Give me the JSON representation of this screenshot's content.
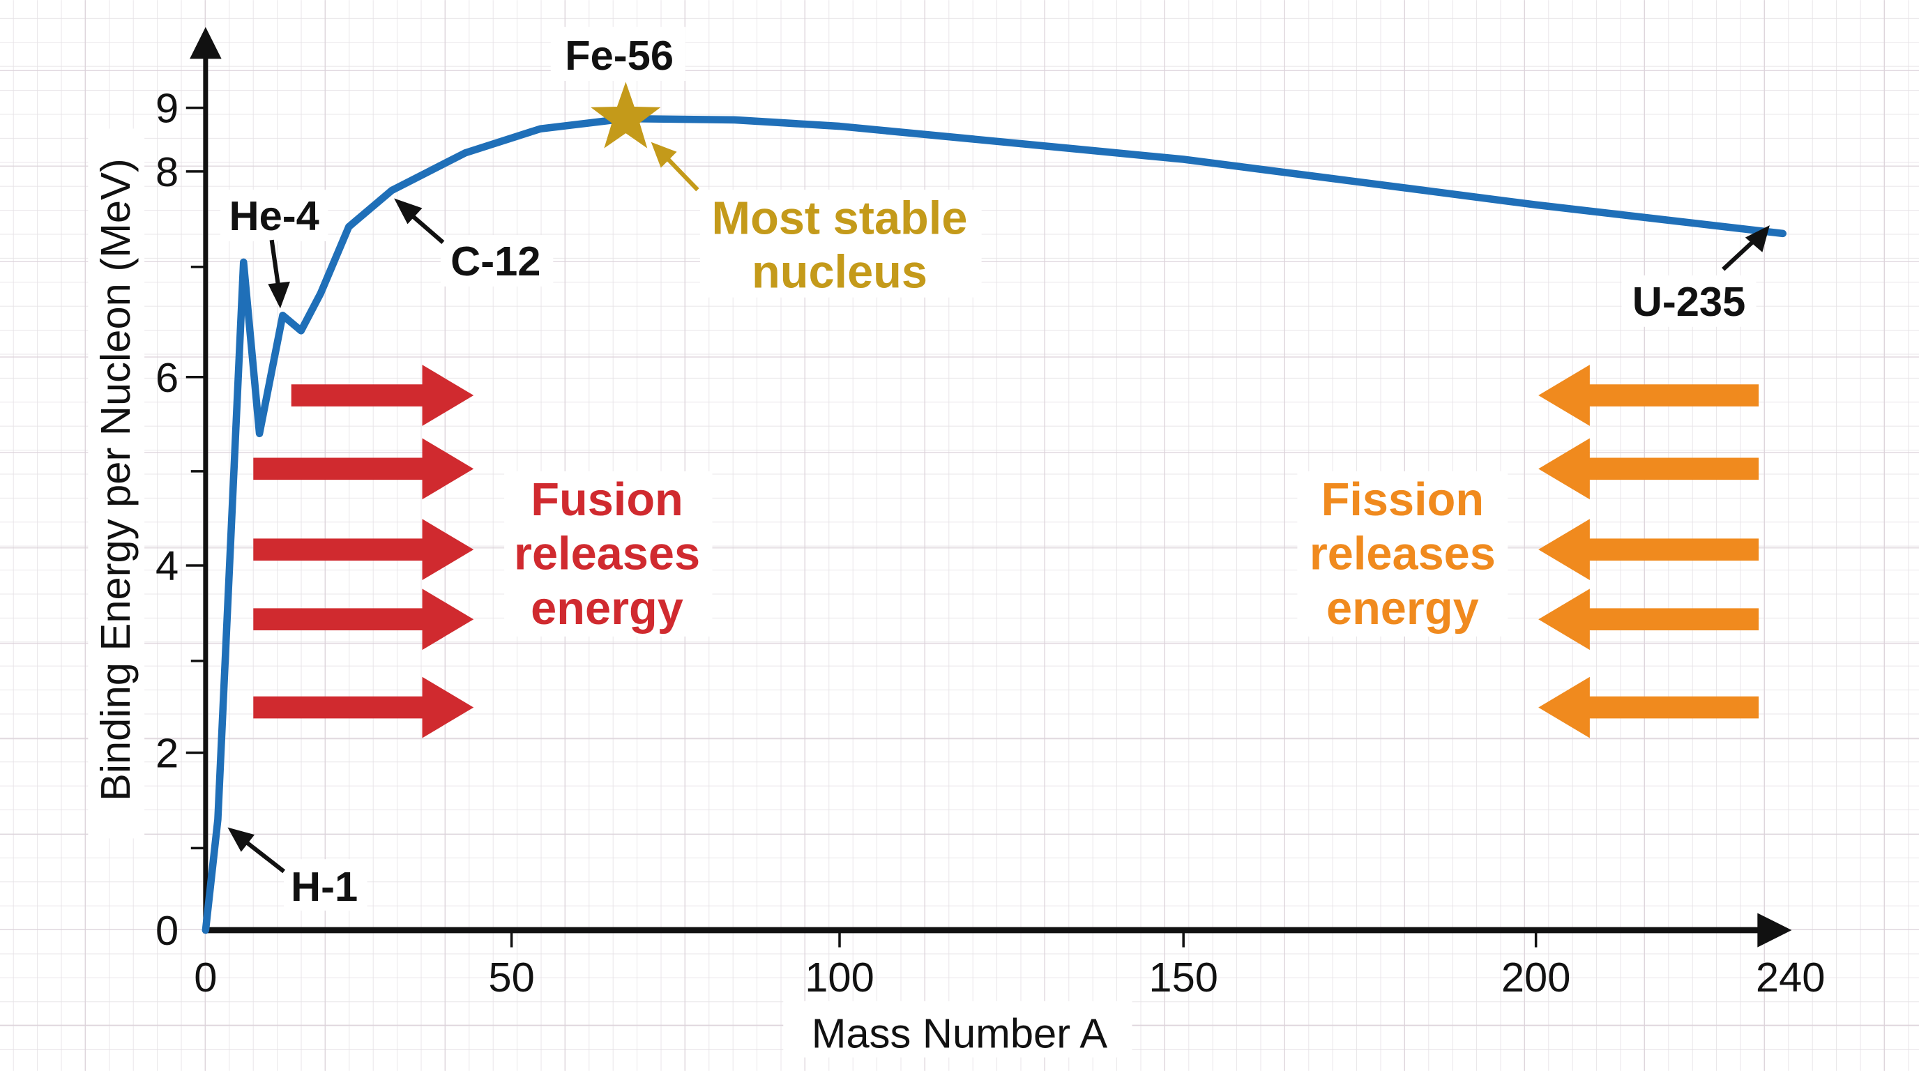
{
  "chart_data": {
    "type": "line",
    "title": "",
    "xlabel": "Mass Number A",
    "ylabel": "Binding Energy per Nucleon (MeV)",
    "x_ticks": [
      0,
      50,
      100,
      150,
      200,
      240
    ],
    "y_ticks": [
      0,
      2,
      4,
      6,
      8,
      9
    ],
    "y_minor_ticks": [
      1,
      3,
      5,
      7
    ],
    "xlim": [
      0,
      240
    ],
    "ylim": [
      0,
      9
    ],
    "grid": true,
    "series": [
      {
        "color": "#1f6fb8",
        "x": [
          0,
          2,
          6.2,
          8.8,
          12.6,
          15.6,
          18.8,
          23.4,
          30.4,
          42.4,
          54.4,
          67.4,
          84,
          100,
          150,
          200,
          238.8
        ],
        "y": [
          0,
          1.3,
          7.05,
          5.4,
          6.56,
          6.42,
          6.76,
          7.42,
          7.8,
          8.29,
          8.67,
          8.83,
          8.81,
          8.71,
          8.19,
          7.65,
          7.35
        ]
      }
    ],
    "annotations": [
      {
        "text": "H-1",
        "color": "#111111"
      },
      {
        "text": "He-4",
        "color": "#111111"
      },
      {
        "text": "C-12",
        "color": "#111111"
      },
      {
        "text": "Fe-56",
        "color": "#111111",
        "marker": "star",
        "marker_color": "#c49a1a"
      },
      {
        "text": "U-235",
        "color": "#111111"
      },
      {
        "lines": [
          "Most stable",
          "nucleus"
        ],
        "color": "#c49a1a"
      },
      {
        "lines": [
          "Fusion",
          "releases",
          "energy"
        ],
        "color": "#d02a2f",
        "arrows": "right",
        "arrow_count": 5
      },
      {
        "lines": [
          "Fission",
          "releases",
          "energy"
        ],
        "color": "#f08a1e",
        "arrows": "left",
        "arrow_count": 5
      }
    ]
  }
}
